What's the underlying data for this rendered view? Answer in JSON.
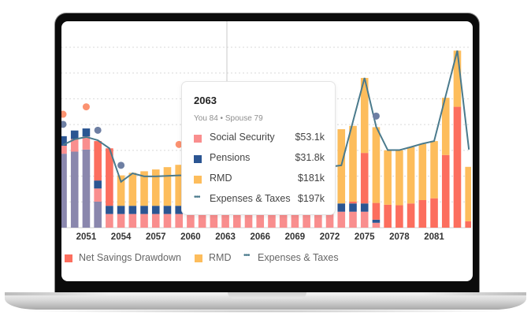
{
  "colors": {
    "social_security": "#f98e8e",
    "pensions": "#2b5592",
    "rmd": "#fdbd5c",
    "net_savings_drawdown": "#fc6e5e",
    "unlabeled_income": "#8a87ad",
    "expenses_line": "#4a7a8c",
    "marker_salmon": "#fb9270",
    "marker_navy": "#6e7fa3"
  },
  "chart_data": {
    "type": "bar",
    "stacked": true,
    "grid": true,
    "ylim": [
      0,
      700
    ],
    "yunit": "$k",
    "x": [
      2049,
      2050,
      2051,
      2052,
      2053,
      2054,
      2055,
      2056,
      2057,
      2058,
      2059,
      2060,
      2061,
      2062,
      2063,
      2064,
      2065,
      2066,
      2067,
      2068,
      2069,
      2070,
      2071,
      2072,
      2073,
      2074,
      2075,
      2076,
      2077,
      2078,
      2079,
      2080,
      2081,
      2082,
      2083,
      2084
    ],
    "tick_labels": [
      "2051",
      "2054",
      "2057",
      "2060",
      "2063",
      "2066",
      "2069",
      "2072",
      "2075",
      "2078",
      "2081"
    ],
    "series": [
      {
        "key": "unlabeled_income",
        "values": [
          287,
          295,
          303,
          101,
          0,
          0,
          0,
          0,
          0,
          0,
          0,
          0,
          0,
          0,
          0,
          0,
          0,
          0,
          0,
          0,
          0,
          0,
          0,
          0,
          0,
          0,
          0,
          0,
          0,
          0,
          0,
          0,
          0,
          0,
          0,
          0
        ]
      },
      {
        "key": "social_security",
        "name": "Social Security",
        "values": [
          31,
          49,
          51,
          51,
          53.1,
          53.1,
          53.1,
          53.1,
          53.1,
          53.1,
          53.1,
          53.1,
          53.1,
          53.1,
          53.1,
          53.1,
          53.1,
          53.1,
          53.1,
          53.1,
          53.1,
          53.1,
          53.1,
          53.1,
          62,
          62,
          62,
          19,
          0,
          0,
          0,
          0,
          0,
          0,
          0,
          0
        ]
      },
      {
        "key": "pensions",
        "name": "Pensions",
        "values": [
          37,
          33,
          31,
          31,
          31.8,
          31.8,
          31.8,
          31.8,
          31.8,
          31.8,
          31.8,
          31.8,
          31.8,
          31.8,
          31.8,
          31.8,
          31.8,
          31.8,
          31.8,
          31.8,
          31.8,
          31.8,
          31.8,
          31.8,
          32,
          32,
          32,
          12,
          0,
          0,
          0,
          0,
          0,
          0,
          0,
          0
        ]
      },
      {
        "key": "net_savings_drawdown",
        "name": "Net Savings Drawdown",
        "values": [
          0,
          0,
          0,
          153,
          223,
          0,
          0,
          0,
          0,
          0,
          0,
          0,
          0,
          0,
          0,
          0,
          0,
          0,
          0,
          0,
          0,
          0,
          0,
          0,
          0,
          7,
          196,
          65,
          89,
          87,
          94,
          107,
          114,
          282,
          469,
          25
        ]
      },
      {
        "key": "rmd",
        "name": "RMD",
        "values": [
          0,
          0,
          0,
          0,
          0,
          118,
          128,
          134,
          141,
          150,
          159,
          168,
          172,
          176,
          181,
          186,
          191,
          197,
          203,
          210,
          217,
          224,
          231,
          238,
          288,
          294,
          291,
          294,
          211,
          213,
          219,
          218,
          222,
          222,
          218,
          211
        ]
      }
    ],
    "line": {
      "name": "Expenses & Taxes",
      "values": [
        321,
        343,
        352,
        339,
        308,
        178,
        211,
        199,
        199,
        201,
        203,
        203,
        200,
        198,
        197,
        200,
        203,
        207,
        211,
        216,
        221,
        226,
        231,
        236,
        242,
        412,
        581,
        392,
        301,
        301,
        313,
        326,
        336,
        512,
        687,
        303
      ]
    },
    "markers": [
      {
        "year": 2049,
        "value": 440,
        "color": "marker_salmon"
      },
      {
        "year": 2049,
        "value": 401,
        "color": "marker_navy"
      },
      {
        "year": 2051,
        "value": 469,
        "color": "marker_salmon"
      },
      {
        "year": 2052,
        "value": 378,
        "color": "marker_navy"
      },
      {
        "year": 2054,
        "value": 242,
        "color": "marker_navy"
      },
      {
        "year": 2059,
        "value": 323,
        "color": "marker_salmon"
      },
      {
        "year": 2076,
        "value": 433,
        "color": "marker_navy"
      }
    ],
    "legend": {
      "placement": "bottom-left",
      "items": [
        {
          "label": "Net Savings Drawdown",
          "color": "net_savings_drawdown",
          "kind": "square"
        },
        {
          "label": "RMD",
          "color": "rmd",
          "kind": "square"
        },
        {
          "label": "Expenses & Taxes",
          "color": "expenses_line",
          "kind": "dots"
        }
      ]
    }
  },
  "tooltip": {
    "year": "2063",
    "ages": "You 84 • Spouse 79",
    "rows": [
      {
        "label": "Social Security",
        "value": "$53.1k",
        "color": "social_security",
        "kind": "square"
      },
      {
        "label": "Pensions",
        "value": "$31.8k",
        "color": "pensions",
        "kind": "square"
      },
      {
        "label": "RMD",
        "value": "$181k",
        "color": "rmd",
        "kind": "square"
      },
      {
        "label": "Expenses & Taxes",
        "value": "$197k",
        "color": "expenses_line",
        "kind": "dots"
      }
    ]
  }
}
